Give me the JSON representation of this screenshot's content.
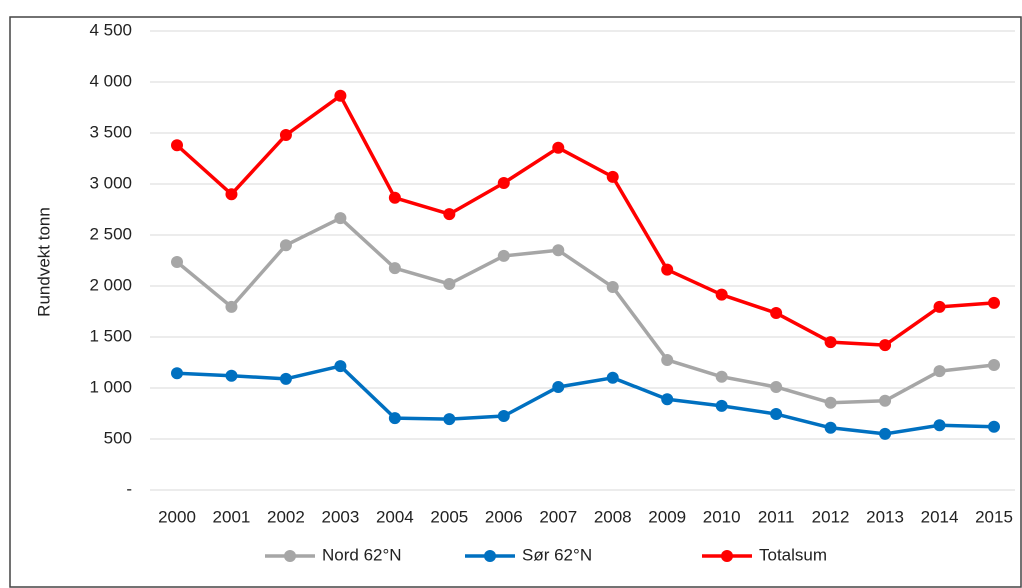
{
  "chart_data": {
    "type": "line",
    "ylabel": "Rundvekt tonn",
    "categories": [
      "2000",
      "2001",
      "2002",
      "2003",
      "2004",
      "2005",
      "2006",
      "2007",
      "2008",
      "2009",
      "2010",
      "2011",
      "2012",
      "2013",
      "2014",
      "2015"
    ],
    "series": [
      {
        "name": "Nord 62°N",
        "color": "#a6a6a6",
        "values": [
          2235,
          1795,
          2400,
          2665,
          2175,
          2020,
          2295,
          2350,
          1990,
          1275,
          1110,
          1010,
          855,
          875,
          1165,
          1225
        ]
      },
      {
        "name": "Sør 62°N",
        "color": "#0070c0",
        "values": [
          1145,
          1120,
          1090,
          1215,
          705,
          695,
          725,
          1010,
          1100,
          890,
          825,
          745,
          610,
          550,
          635,
          620
        ]
      },
      {
        "name": "Totalsum",
        "color": "#ff0000",
        "values": [
          3380,
          2900,
          3480,
          3865,
          2865,
          2705,
          3010,
          3355,
          3070,
          2160,
          1915,
          1735,
          1450,
          1420,
          1795,
          1835
        ]
      }
    ],
    "ylim": [
      0,
      4500
    ],
    "yticks": [
      {
        "value": 0,
        "label": "-"
      },
      500,
      {
        "value": 1000,
        "label": "1 000"
      },
      {
        "value": 1500,
        "label": "1 500"
      },
      {
        "value": 2000,
        "label": "2 000"
      },
      {
        "value": 2500,
        "label": "2 500"
      },
      {
        "value": 3000,
        "label": "3 000"
      },
      {
        "value": 3500,
        "label": "3 500"
      },
      {
        "value": 4000,
        "label": "4 000"
      },
      {
        "value": 4500,
        "label": "4 500"
      }
    ],
    "grid": true,
    "legend": "bottom"
  }
}
